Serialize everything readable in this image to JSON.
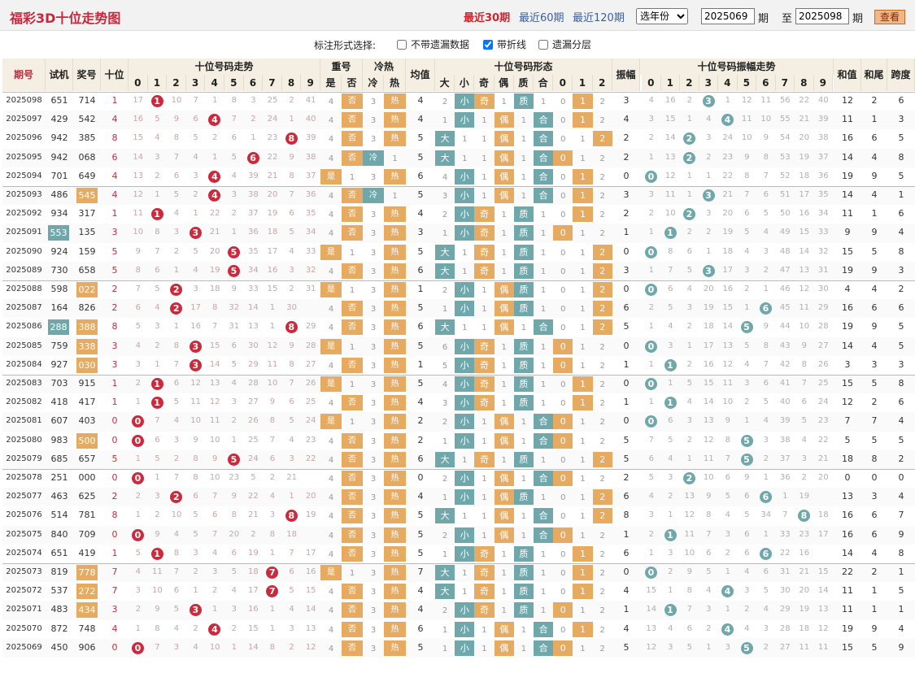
{
  "title": "福彩3D十位走势图",
  "ranges": [
    "最近30期",
    "最近60期",
    "最近120期"
  ],
  "year_select": "选年份",
  "from": "2025069",
  "period1": "期",
  "to_label": "至",
  "to": "2025098",
  "period2": "期",
  "query": "查看",
  "option_label": "标注形式选择:",
  "options": [
    {
      "label": "不带遗漏数据",
      "checked": false
    },
    {
      "label": "带折线",
      "checked": true
    },
    {
      "label": "遗漏分层",
      "checked": false
    }
  ],
  "headers": {
    "qihao": "期号",
    "shiji": "试机",
    "jianghao": "奖号",
    "shiwei": "十位",
    "zoushi": "十位号码走势",
    "chonghao": "重号",
    "lengre": "冷热",
    "junzhi": "均值",
    "xingtai": "十位号码形态",
    "zhenfu": "振幅",
    "zfzoushi": "十位号码振幅走势",
    "hezhi": "和值",
    "hewei": "和尾",
    "kuadu": "跨度",
    "digits": [
      "0",
      "1",
      "2",
      "3",
      "4",
      "5",
      "6",
      "7",
      "8",
      "9"
    ],
    "shi": "是",
    "fou": "否",
    "leng": "冷",
    "re": "热",
    "da": "大",
    "xiao": "小",
    "ji": "奇",
    "ou": "偶",
    "zhi": "质",
    "he": "合",
    "r0": "0",
    "r1": "1",
    "r2": "2"
  },
  "rows": [
    {
      "q": "2025098",
      "s": "651",
      "j": "714",
      "t": "1",
      "z": [
        "17",
        "1",
        "10",
        "7",
        "1",
        "8",
        "3",
        "25",
        "2",
        "41"
      ],
      "ch": "否",
      "lr": "热",
      "jz": "4",
      "da": "2",
      "ox": "奇",
      "zh": "质",
      "rr": "1",
      "zf": "3",
      "zz": [
        "4",
        "16",
        "2",
        "3",
        "1",
        "12",
        "11",
        "56",
        "22",
        "40"
      ],
      "hz": "12",
      "hw": "2",
      "kd": "6",
      "sh": "",
      "jh": ""
    },
    {
      "q": "2025097",
      "s": "429",
      "j": "542",
      "t": "4",
      "z": [
        "16",
        "5",
        "9",
        "6",
        "4",
        "7",
        "2",
        "24",
        "1",
        "40"
      ],
      "ch": "否",
      "lr": "热",
      "jz": "4",
      "da": "1",
      "ox": "偶",
      "zh": "合",
      "rr": "1",
      "zf": "4",
      "zz": [
        "3",
        "15",
        "1",
        "4",
        "4",
        "11",
        "10",
        "55",
        "21",
        "39"
      ],
      "hz": "11",
      "hw": "1",
      "kd": "3",
      "sh": "",
      "jh": ""
    },
    {
      "q": "2025096",
      "s": "942",
      "j": "385",
      "t": "8",
      "z": [
        "15",
        "4",
        "8",
        "5",
        "2",
        "6",
        "1",
        "23",
        "8",
        "39"
      ],
      "ch": "否",
      "lr": "热",
      "jz": "5",
      "da": "大",
      "ox": "偶",
      "zh": "合",
      "rr": "2",
      "zf": "2",
      "zz": [
        "2",
        "14",
        "2",
        "3",
        "24",
        "10",
        "9",
        "54",
        "20",
        "38"
      ],
      "hz": "16",
      "hw": "6",
      "kd": "5",
      "sh": "",
      "jh": ""
    },
    {
      "q": "2025095",
      "s": "942",
      "j": "068",
      "t": "6",
      "z": [
        "14",
        "3",
        "7",
        "4",
        "1",
        "5",
        "6",
        "22",
        "9",
        "38"
      ],
      "ch": "否",
      "lr": "冷",
      "jz": "5",
      "da": "大",
      "ox": "偶",
      "zh": "合",
      "rr": "0",
      "zf": "2",
      "zz": [
        "1",
        "13",
        "2",
        "2",
        "23",
        "9",
        "8",
        "53",
        "19",
        "37"
      ],
      "hz": "14",
      "hw": "4",
      "kd": "8",
      "sh": "",
      "jh": ""
    },
    {
      "q": "2025094",
      "s": "701",
      "j": "649",
      "t": "4",
      "z": [
        "13",
        "2",
        "6",
        "3",
        "4",
        "4",
        "39",
        "21",
        "8",
        "37"
      ],
      "ch": "是",
      "lr": "热",
      "jz": "6",
      "da": "4",
      "ox": "偶",
      "zh": "合",
      "rr": "1",
      "zf": "0",
      "zz": [
        "0",
        "12",
        "1",
        "1",
        "22",
        "8",
        "7",
        "52",
        "18",
        "36"
      ],
      "hz": "19",
      "hw": "9",
      "kd": "5",
      "sh": "",
      "jh": ""
    },
    {
      "q": "2025093",
      "s": "486",
      "j": "545",
      "t": "4",
      "z": [
        "12",
        "1",
        "5",
        "2",
        "4",
        "3",
        "38",
        "20",
        "7",
        "36"
      ],
      "ch": "否",
      "lr": "冷",
      "jz": "5",
      "da": "3",
      "ox": "偶",
      "zh": "合",
      "rr": "1",
      "zf": "3",
      "zz": [
        "3",
        "11",
        "1",
        "3",
        "21",
        "7",
        "6",
        "51",
        "17",
        "35"
      ],
      "hz": "14",
      "hw": "4",
      "kd": "1",
      "sh": "",
      "jh": "545"
    },
    {
      "q": "2025092",
      "s": "934",
      "j": "317",
      "t": "1",
      "z": [
        "11",
        "1",
        "4",
        "1",
        "22",
        "2",
        "37",
        "19",
        "6",
        "35"
      ],
      "ch": "否",
      "lr": "热",
      "jz": "4",
      "da": "2",
      "ox": "奇",
      "zh": "质",
      "rr": "1",
      "zf": "2",
      "zz": [
        "2",
        "10",
        "2",
        "3",
        "20",
        "6",
        "5",
        "50",
        "16",
        "34"
      ],
      "hz": "11",
      "hw": "1",
      "kd": "6",
      "sh": "",
      "jh": ""
    },
    {
      "q": "2025091",
      "s": "553",
      "j": "135",
      "t": "3",
      "z": [
        "10",
        "8",
        "3",
        "3",
        "21",
        "1",
        "36",
        "18",
        "5",
        "34"
      ],
      "ch": "否",
      "lr": "热",
      "jz": "3",
      "da": "1",
      "ox": "奇",
      "zh": "质",
      "rr": "0",
      "zf": "1",
      "zz": [
        "1",
        "9",
        "2",
        "2",
        "19",
        "5",
        "4",
        "49",
        "15",
        "33"
      ],
      "hz": "9",
      "hw": "9",
      "kd": "4",
      "sh": "553",
      "jh": ""
    },
    {
      "q": "2025090",
      "s": "924",
      "j": "159",
      "t": "5",
      "z": [
        "9",
        "7",
        "2",
        "5",
        "20",
        "5",
        "35",
        "17",
        "4",
        "33"
      ],
      "ch": "是",
      "lr": "热",
      "jz": "5",
      "da": "大",
      "ox": "奇",
      "zh": "质",
      "rr": "2",
      "zf": "0",
      "zz": [
        "0",
        "8",
        "6",
        "1",
        "18",
        "4",
        "3",
        "48",
        "14",
        "32"
      ],
      "hz": "15",
      "hw": "5",
      "kd": "8",
      "sh": "",
      "jh": ""
    },
    {
      "q": "2025089",
      "s": "730",
      "j": "658",
      "t": "5",
      "z": [
        "8",
        "6",
        "1",
        "4",
        "19",
        "5",
        "34",
        "16",
        "3",
        "32"
      ],
      "ch": "否",
      "lr": "热",
      "jz": "6",
      "da": "大",
      "ox": "奇",
      "zh": "质",
      "rr": "2",
      "zf": "3",
      "zz": [
        "1",
        "7",
        "5",
        "3",
        "17",
        "3",
        "2",
        "47",
        "13",
        "31"
      ],
      "hz": "19",
      "hw": "9",
      "kd": "3",
      "sh": "",
      "jh": ""
    },
    {
      "q": "2025088",
      "s": "598",
      "j": "022",
      "t": "2",
      "z": [
        "7",
        "5",
        "2",
        "3",
        "18",
        "9",
        "33",
        "15",
        "2",
        "31"
      ],
      "ch": "是",
      "lr": "热",
      "jz": "1",
      "da": "2",
      "ox": "偶",
      "zh": "质",
      "rr": "2",
      "zf": "0",
      "zz": [
        "0",
        "6",
        "4",
        "20",
        "16",
        "2",
        "1",
        "46",
        "12",
        "30"
      ],
      "hz": "4",
      "hw": "4",
      "kd": "2",
      "sh": "",
      "jh": "022"
    },
    {
      "q": "2025087",
      "s": "164",
      "j": "826",
      "t": "2",
      "z": [
        "6",
        "4",
        "2",
        "17",
        "8",
        "32",
        "14",
        "1",
        "30",
        ""
      ],
      "ch": "否",
      "lr": "热",
      "jz": "5",
      "da": "1",
      "ox": "偶",
      "zh": "质",
      "rr": "2",
      "zf": "6",
      "zz": [
        "2",
        "5",
        "3",
        "19",
        "15",
        "1",
        "6",
        "45",
        "11",
        "29"
      ],
      "hz": "16",
      "hw": "6",
      "kd": "6",
      "sh": "",
      "jh": ""
    },
    {
      "q": "2025086",
      "s": "288",
      "j": "388",
      "t": "8",
      "z": [
        "5",
        "3",
        "1",
        "16",
        "7",
        "31",
        "13",
        "1",
        "8",
        "29"
      ],
      "ch": "否",
      "lr": "热",
      "jz": "6",
      "da": "大",
      "ox": "偶",
      "zh": "合",
      "rr": "2",
      "zf": "5",
      "zz": [
        "1",
        "4",
        "2",
        "18",
        "14",
        "5",
        "9",
        "44",
        "10",
        "28"
      ],
      "hz": "19",
      "hw": "9",
      "kd": "5",
      "sh": "288",
      "jh": "388"
    },
    {
      "q": "2025085",
      "s": "759",
      "j": "338",
      "t": "3",
      "z": [
        "4",
        "2",
        "8",
        "3",
        "15",
        "6",
        "30",
        "12",
        "9",
        "28"
      ],
      "ch": "是",
      "lr": "热",
      "jz": "5",
      "da": "6",
      "ox": "奇",
      "zh": "质",
      "rr": "0",
      "zf": "0",
      "zz": [
        "0",
        "3",
        "1",
        "17",
        "13",
        "5",
        "8",
        "43",
        "9",
        "27"
      ],
      "hz": "14",
      "hw": "4",
      "kd": "5",
      "sh": "",
      "jh": "338"
    },
    {
      "q": "2025084",
      "s": "927",
      "j": "030",
      "t": "3",
      "z": [
        "3",
        "1",
        "7",
        "3",
        "14",
        "5",
        "29",
        "11",
        "8",
        "27"
      ],
      "ch": "否",
      "lr": "热",
      "jz": "1",
      "da": "5",
      "ox": "奇",
      "zh": "质",
      "rr": "0",
      "zf": "1",
      "zz": [
        "1",
        "2",
        "2",
        "16",
        "12",
        "4",
        "7",
        "42",
        "8",
        "26"
      ],
      "hz": "3",
      "hw": "3",
      "kd": "3",
      "sh": "",
      "jh": "030"
    },
    {
      "q": "2025083",
      "s": "703",
      "j": "915",
      "t": "1",
      "z": [
        "2",
        "1",
        "6",
        "12",
        "13",
        "4",
        "28",
        "10",
        "7",
        "26"
      ],
      "ch": "是",
      "lr": "热",
      "jz": "5",
      "da": "4",
      "ox": "奇",
      "zh": "质",
      "rr": "1",
      "zf": "0",
      "zz": [
        "0",
        "1",
        "5",
        "15",
        "11",
        "3",
        "6",
        "41",
        "7",
        "25"
      ],
      "hz": "15",
      "hw": "5",
      "kd": "8",
      "sh": "",
      "jh": ""
    },
    {
      "q": "2025082",
      "s": "418",
      "j": "417",
      "t": "1",
      "z": [
        "1",
        "1",
        "5",
        "11",
        "12",
        "3",
        "27",
        "9",
        "6",
        "25"
      ],
      "ch": "否",
      "lr": "热",
      "jz": "4",
      "da": "3",
      "ox": "奇",
      "zh": "质",
      "rr": "1",
      "zf": "1",
      "zz": [
        "1",
        "1",
        "4",
        "14",
        "10",
        "2",
        "5",
        "40",
        "6",
        "24"
      ],
      "hz": "12",
      "hw": "2",
      "kd": "6",
      "sh": "",
      "jh": ""
    },
    {
      "q": "2025081",
      "s": "607",
      "j": "403",
      "t": "0",
      "z": [
        "0",
        "7",
        "4",
        "10",
        "11",
        "2",
        "26",
        "8",
        "5",
        "24"
      ],
      "ch": "是",
      "lr": "热",
      "jz": "2",
      "da": "2",
      "ox": "偶",
      "zh": "合",
      "rr": "0",
      "zf": "0",
      "zz": [
        "0",
        "6",
        "3",
        "13",
        "9",
        "1",
        "4",
        "39",
        "5",
        "23"
      ],
      "hz": "7",
      "hw": "7",
      "kd": "4",
      "sh": "",
      "jh": ""
    },
    {
      "q": "2025080",
      "s": "983",
      "j": "500",
      "t": "0",
      "z": [
        "0",
        "6",
        "3",
        "9",
        "10",
        "1",
        "25",
        "7",
        "4",
        "23"
      ],
      "ch": "否",
      "lr": "热",
      "jz": "2",
      "da": "1",
      "ox": "偶",
      "zh": "合",
      "rr": "0",
      "zf": "5",
      "zz": [
        "7",
        "5",
        "2",
        "12",
        "8",
        "5",
        "3",
        "38",
        "4",
        "22"
      ],
      "hz": "5",
      "hw": "5",
      "kd": "5",
      "sh": "",
      "jh": "500"
    },
    {
      "q": "2025079",
      "s": "685",
      "j": "657",
      "t": "5",
      "z": [
        "1",
        "5",
        "2",
        "8",
        "9",
        "5",
        "24",
        "6",
        "3",
        "22"
      ],
      "ch": "否",
      "lr": "热",
      "jz": "6",
      "da": "大",
      "ox": "奇",
      "zh": "质",
      "rr": "2",
      "zf": "5",
      "zz": [
        "6",
        "4",
        "1",
        "11",
        "7",
        "5",
        "2",
        "37",
        "3",
        "21"
      ],
      "hz": "18",
      "hw": "8",
      "kd": "2",
      "sh": "",
      "jh": ""
    },
    {
      "q": "2025078",
      "s": "251",
      "j": "000",
      "t": "0",
      "z": [
        "0",
        "1",
        "7",
        "8",
        "10",
        "23",
        "5",
        "2",
        "21",
        ""
      ],
      "ch": "否",
      "lr": "热",
      "jz": "0",
      "da": "2",
      "ox": "偶",
      "zh": "合",
      "rr": "0",
      "zf": "2",
      "zz": [
        "5",
        "3",
        "2",
        "10",
        "6",
        "9",
        "1",
        "36",
        "2",
        "20"
      ],
      "hz": "0",
      "hw": "0",
      "kd": "0",
      "sh": "",
      "jh": ""
    },
    {
      "q": "2025077",
      "s": "463",
      "j": "625",
      "t": "2",
      "z": [
        "2",
        "3",
        "2",
        "6",
        "7",
        "9",
        "22",
        "4",
        "1",
        "20"
      ],
      "ch": "否",
      "lr": "热",
      "jz": "4",
      "da": "1",
      "ox": "偶",
      "zh": "质",
      "rr": "2",
      "zf": "6",
      "zz": [
        "4",
        "2",
        "13",
        "9",
        "5",
        "6",
        "35",
        "1",
        "19",
        ""
      ],
      "hz": "13",
      "hw": "3",
      "kd": "4",
      "sh": "",
      "jh": ""
    },
    {
      "q": "2025076",
      "s": "514",
      "j": "781",
      "t": "8",
      "z": [
        "1",
        "2",
        "10",
        "5",
        "6",
        "8",
        "21",
        "3",
        "8",
        "19"
      ],
      "ch": "否",
      "lr": "热",
      "jz": "5",
      "da": "大",
      "ox": "偶",
      "zh": "合",
      "rr": "2",
      "zf": "8",
      "zz": [
        "3",
        "1",
        "12",
        "8",
        "4",
        "5",
        "34",
        "7",
        "8",
        "18"
      ],
      "hz": "16",
      "hw": "6",
      "kd": "7",
      "sh": "",
      "jh": ""
    },
    {
      "q": "2025075",
      "s": "840",
      "j": "709",
      "t": "0",
      "z": [
        "0",
        "9",
        "4",
        "5",
        "7",
        "20",
        "2",
        "8",
        "18",
        ""
      ],
      "ch": "否",
      "lr": "热",
      "jz": "5",
      "da": "2",
      "ox": "偶",
      "zh": "合",
      "rr": "0",
      "zf": "1",
      "zz": [
        "2",
        "1",
        "11",
        "7",
        "3",
        "6",
        "1",
        "33",
        "23",
        "17"
      ],
      "hz": "16",
      "hw": "6",
      "kd": "9",
      "sh": "",
      "jh": ""
    },
    {
      "q": "2025074",
      "s": "651",
      "j": "419",
      "t": "1",
      "z": [
        "5",
        "1",
        "8",
        "3",
        "4",
        "6",
        "19",
        "1",
        "7",
        "17"
      ],
      "ch": "否",
      "lr": "热",
      "jz": "5",
      "da": "1",
      "ox": "奇",
      "zh": "质",
      "rr": "1",
      "zf": "6",
      "zz": [
        "1",
        "3",
        "10",
        "6",
        "2",
        "6",
        "32",
        "22",
        "16",
        ""
      ],
      "hz": "14",
      "hw": "4",
      "kd": "8",
      "sh": "",
      "jh": ""
    },
    {
      "q": "2025073",
      "s": "819",
      "j": "778",
      "t": "7",
      "z": [
        "4",
        "11",
        "7",
        "2",
        "3",
        "5",
        "18",
        "7",
        "6",
        "16"
      ],
      "ch": "是",
      "lr": "热",
      "jz": "7",
      "da": "大",
      "ox": "奇",
      "zh": "质",
      "rr": "1",
      "zf": "0",
      "zz": [
        "0",
        "2",
        "9",
        "5",
        "1",
        "4",
        "6",
        "31",
        "21",
        "15"
      ],
      "hz": "22",
      "hw": "2",
      "kd": "1",
      "sh": "",
      "jh": "778"
    },
    {
      "q": "2025072",
      "s": "537",
      "j": "272",
      "t": "7",
      "z": [
        "3",
        "10",
        "6",
        "1",
        "2",
        "4",
        "17",
        "7",
        "5",
        "15"
      ],
      "ch": "否",
      "lr": "热",
      "jz": "4",
      "da": "大",
      "ox": "奇",
      "zh": "质",
      "rr": "1",
      "zf": "4",
      "zz": [
        "15",
        "1",
        "8",
        "4",
        "4",
        "3",
        "5",
        "30",
        "20",
        "14"
      ],
      "hz": "11",
      "hw": "1",
      "kd": "5",
      "sh": "",
      "jh": "272"
    },
    {
      "q": "2025071",
      "s": "483",
      "j": "434",
      "t": "3",
      "z": [
        "2",
        "9",
        "5",
        "3",
        "1",
        "3",
        "16",
        "1",
        "4",
        "14"
      ],
      "ch": "否",
      "lr": "热",
      "jz": "4",
      "da": "2",
      "ox": "奇",
      "zh": "质",
      "rr": "0",
      "zf": "1",
      "zz": [
        "14",
        "1",
        "7",
        "3",
        "1",
        "2",
        "4",
        "29",
        "19",
        "13"
      ],
      "hz": "11",
      "hw": "1",
      "kd": "1",
      "sh": "",
      "jh": "434"
    },
    {
      "q": "2025070",
      "s": "872",
      "j": "748",
      "t": "4",
      "z": [
        "1",
        "8",
        "4",
        "2",
        "4",
        "2",
        "15",
        "1",
        "3",
        "13"
      ],
      "ch": "否",
      "lr": "热",
      "jz": "6",
      "da": "1",
      "ox": "偶",
      "zh": "合",
      "rr": "1",
      "zf": "4",
      "zz": [
        "13",
        "4",
        "6",
        "2",
        "5",
        "4",
        "3",
        "28",
        "18",
        "12"
      ],
      "hz": "19",
      "hw": "9",
      "kd": "4",
      "sh": "",
      "jh": ""
    },
    {
      "q": "2025069",
      "s": "450",
      "j": "906",
      "t": "0",
      "z": [
        "0",
        "7",
        "3",
        "4",
        "10",
        "1",
        "14",
        "8",
        "2",
        "12"
      ],
      "ch": "否",
      "lr": "热",
      "jz": "5",
      "da": "1",
      "ox": "偶",
      "zh": "合",
      "rr": "0",
      "zf": "5",
      "zz": [
        "12",
        "3",
        "5",
        "1",
        "3",
        "5",
        "2",
        "27",
        "11",
        "11"
      ],
      "hz": "15",
      "hw": "5",
      "kd": "9",
      "sh": "",
      "jh": ""
    }
  ],
  "colors": {
    "red": "#cc2a3c",
    "teal": "#6fa7ab",
    "orange": "#e6ab60",
    "header": "#f4efe2"
  }
}
